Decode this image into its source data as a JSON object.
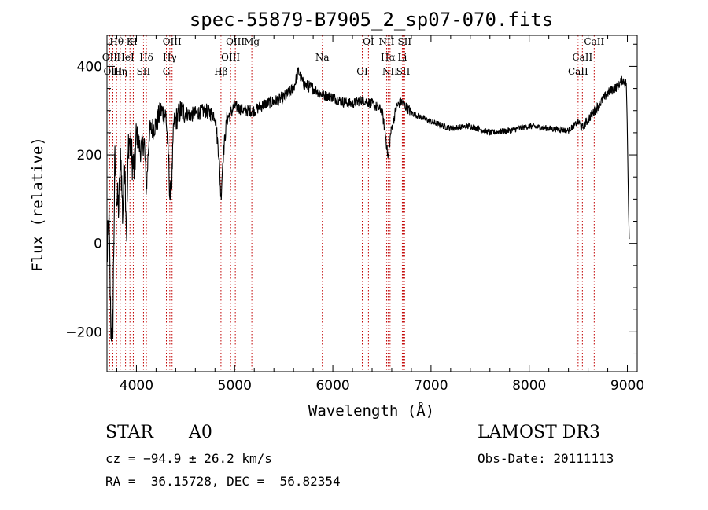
{
  "chart_data": {
    "type": "line",
    "title": "spec-55879-B7905_2_sp07-070.fits",
    "xlabel": "Wavelength (Å)",
    "ylabel": "Flux (relative)",
    "xlim": [
      3700,
      9100
    ],
    "ylim": [
      -290,
      470
    ],
    "xticks": [
      4000,
      5000,
      6000,
      7000,
      8000,
      9000
    ],
    "yticks": [
      -200,
      0,
      200,
      400
    ],
    "series": [
      {
        "name": "flux",
        "anchors": [
          [
            3700,
            -40
          ],
          [
            3720,
            60
          ],
          [
            3740,
            -200
          ],
          [
            3760,
            -180
          ],
          [
            3780,
            190
          ],
          [
            3800,
            100
          ],
          [
            3820,
            80
          ],
          [
            3840,
            210
          ],
          [
            3860,
            60
          ],
          [
            3880,
            200
          ],
          [
            3900,
            20
          ],
          [
            3920,
            240
          ],
          [
            3950,
            200
          ],
          [
            3980,
            160
          ],
          [
            4000,
            250
          ],
          [
            4040,
            210
          ],
          [
            4080,
            230
          ],
          [
            4101,
            120
          ],
          [
            4130,
            250
          ],
          [
            4200,
            270
          ],
          [
            4250,
            300
          ],
          [
            4300,
            290
          ],
          [
            4330,
            180
          ],
          [
            4340,
            100
          ],
          [
            4360,
            140
          ],
          [
            4380,
            270
          ],
          [
            4450,
            300
          ],
          [
            4550,
            290
          ],
          [
            4700,
            300
          ],
          [
            4800,
            290
          ],
          [
            4840,
            200
          ],
          [
            4861,
            100
          ],
          [
            4880,
            190
          ],
          [
            4920,
            280
          ],
          [
            5000,
            310
          ],
          [
            5100,
            300
          ],
          [
            5200,
            300
          ],
          [
            5300,
            315
          ],
          [
            5400,
            320
          ],
          [
            5500,
            330
          ],
          [
            5600,
            350
          ],
          [
            5650,
            390
          ],
          [
            5700,
            360
          ],
          [
            5800,
            350
          ],
          [
            5900,
            335
          ],
          [
            6000,
            330
          ],
          [
            6100,
            320
          ],
          [
            6200,
            315
          ],
          [
            6300,
            325
          ],
          [
            6400,
            315
          ],
          [
            6500,
            300
          ],
          [
            6540,
            240
          ],
          [
            6563,
            190
          ],
          [
            6590,
            250
          ],
          [
            6650,
            310
          ],
          [
            6700,
            320
          ],
          [
            6800,
            295
          ],
          [
            7000,
            275
          ],
          [
            7200,
            260
          ],
          [
            7400,
            265
          ],
          [
            7600,
            250
          ],
          [
            7800,
            255
          ],
          [
            8000,
            265
          ],
          [
            8200,
            260
          ],
          [
            8400,
            255
          ],
          [
            8500,
            275
          ],
          [
            8540,
            260
          ],
          [
            8600,
            280
          ],
          [
            8700,
            310
          ],
          [
            8800,
            340
          ],
          [
            8900,
            355
          ],
          [
            8950,
            370
          ],
          [
            8990,
            360
          ],
          [
            9000,
            250
          ],
          [
            9010,
            100
          ],
          [
            9020,
            0
          ]
        ]
      }
    ],
    "lines": [
      {
        "name": "Hθ",
        "x": 3798
      },
      {
        "name": "OII",
        "x": 3727
      },
      {
        "name": "OIII",
        "x": 3760
      },
      {
        "name": "K",
        "x": 3934
      },
      {
        "name": "HeI",
        "x": 3889
      },
      {
        "name": "Hη",
        "x": 3835
      },
      {
        "name": "H",
        "x": 3968
      },
      {
        "name": "Hδ",
        "x": 4101
      },
      {
        "name": "SII",
        "x": 4072
      },
      {
        "name": "OIII",
        "x": 4363
      },
      {
        "name": "Hγ",
        "x": 4340
      },
      {
        "name": "G",
        "x": 4305
      },
      {
        "name": "OIII",
        "x": 5007
      },
      {
        "name": "OIII",
        "x": 4959
      },
      {
        "name": "Hβ",
        "x": 4861
      },
      {
        "name": "Mg",
        "x": 5175
      },
      {
        "name": "Na",
        "x": 5893
      },
      {
        "name": "OI",
        "x": 6300
      },
      {
        "name": "OI",
        "x": 6363
      },
      {
        "name": "Hα",
        "x": 6563
      },
      {
        "name": "SII",
        "x": 6717
      },
      {
        "name": "NII",
        "x": 6548
      },
      {
        "name": "Li",
        "x": 6708
      },
      {
        "name": "NII",
        "x": 6583
      },
      {
        "name": "SII",
        "x": 6731
      },
      {
        "name": "CaII",
        "x": 8542
      },
      {
        "name": "CaII",
        "x": 8498
      },
      {
        "name": "CaII",
        "x": 8662
      }
    ]
  },
  "info": {
    "class_label": "STAR",
    "subclass": "A0",
    "survey": "LAMOST DR3",
    "redshift": "cz = −94.9 ± 26.2 km/s",
    "obs_date": "Obs-Date: 20111113",
    "coords": "RA =  36.15728, DEC =  56.82354"
  }
}
